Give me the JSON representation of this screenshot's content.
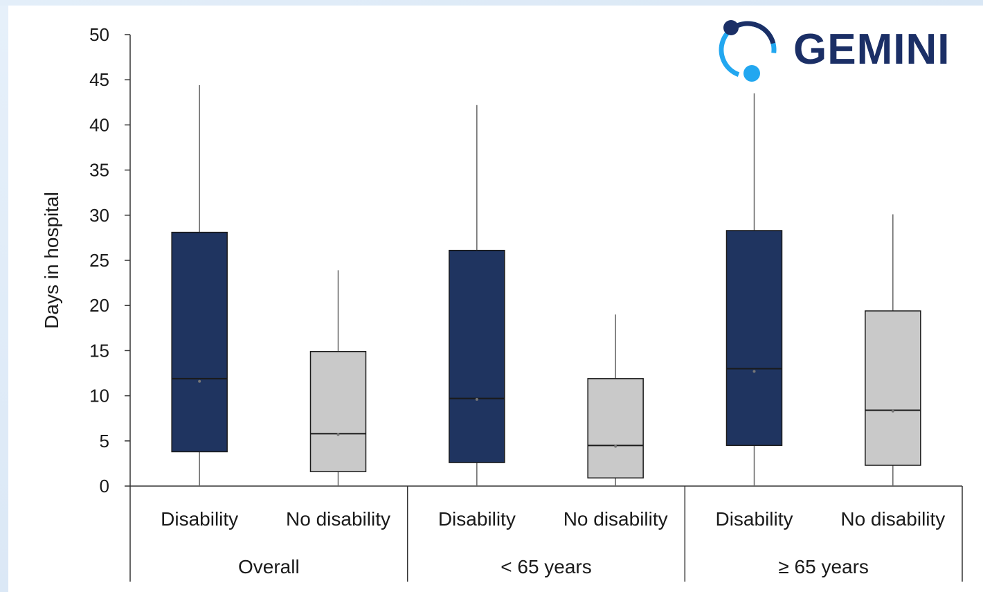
{
  "logo": {
    "text": "GEMINI",
    "icon": "gemini-ring-icon",
    "colors": {
      "dark": "#1b2f66",
      "light": "#22a7f0"
    }
  },
  "chart_data": {
    "type": "boxplot",
    "ylabel": "Days in hospital",
    "ylim": [
      0,
      50
    ],
    "yticks": [
      0,
      5,
      10,
      15,
      20,
      25,
      30,
      35,
      40,
      45,
      50
    ],
    "grid": false,
    "groups": [
      "Overall",
      "< 65 years",
      "≥ 65 years"
    ],
    "categories": [
      "Disability",
      "No disability"
    ],
    "colors": {
      "Disability": "#1f3460",
      "No disability": "#c9c9c9"
    },
    "boxes": [
      {
        "group": "Overall",
        "category": "Disability",
        "min": 0,
        "q1": 3.8,
        "median": 11.9,
        "mean": 11.6,
        "q3": 28.1,
        "max": 44.4
      },
      {
        "group": "Overall",
        "category": "No disability",
        "min": 0,
        "q1": 1.6,
        "median": 5.8,
        "mean": 5.7,
        "q3": 14.9,
        "max": 23.9
      },
      {
        "group": "< 65 years",
        "category": "Disability",
        "min": 0,
        "q1": 2.6,
        "median": 9.7,
        "mean": 9.6,
        "q3": 26.1,
        "max": 42.2
      },
      {
        "group": "< 65 years",
        "category": "No disability",
        "min": 0,
        "q1": 0.9,
        "median": 4.5,
        "mean": 4.4,
        "q3": 11.9,
        "max": 19.0
      },
      {
        "group": "≥ 65 years",
        "category": "Disability",
        "min": 0,
        "q1": 4.5,
        "median": 13.0,
        "mean": 12.7,
        "q3": 28.3,
        "max": 43.5
      },
      {
        "group": "≥ 65 years",
        "category": "No disability",
        "min": 0,
        "q1": 2.3,
        "median": 8.4,
        "mean": 8.3,
        "q3": 19.4,
        "max": 30.1
      }
    ]
  }
}
